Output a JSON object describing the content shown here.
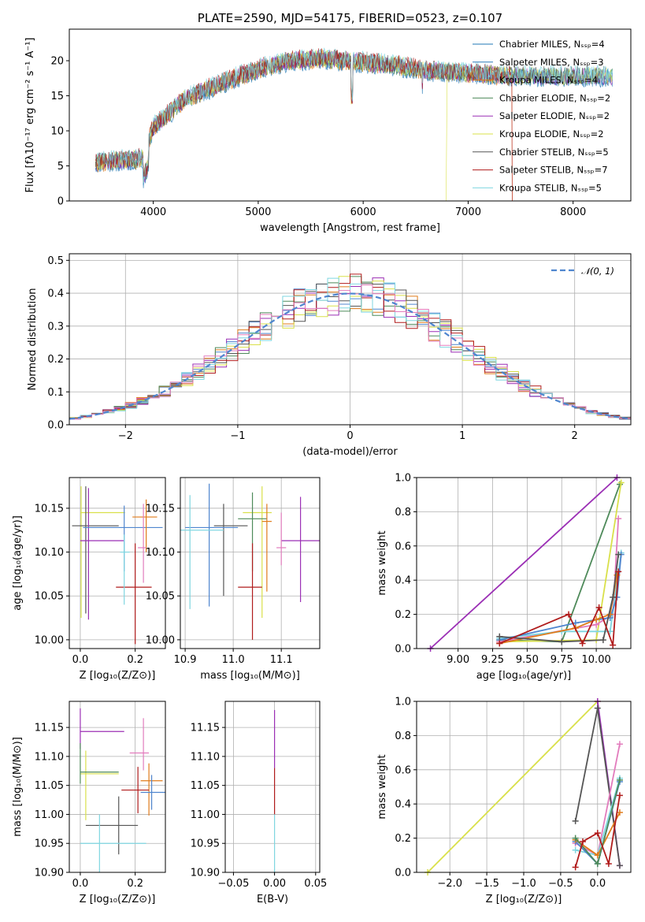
{
  "chart_data": [
    {
      "type": "line",
      "panel": "spectrum",
      "title": "PLATE=2590, MJD=54175, FIBERID=0523, z=0.107",
      "xlabel": "wavelength [Angstrom, rest frame]",
      "ylabel": "Flux [fλ10⁻¹⁷ erg cm⁻² s⁻¹ A⁻¹]",
      "xlim": [
        3200,
        8550
      ],
      "ylim": [
        0,
        24.5
      ],
      "xticks": [
        4000,
        5000,
        6000,
        7000,
        8000
      ],
      "yticks": [
        0,
        5,
        10,
        15,
        20
      ],
      "grid": false,
      "legend_position": "top-right",
      "series": [
        {
          "name": "Chabrier MILES, Nₛₛₚ=4",
          "color": "#1f77b4"
        },
        {
          "name": "Salpeter MILES, Nₛₛₚ=3",
          "color": "#2b7bba"
        },
        {
          "name": "Kroupa MILES, Nₛₛₚ=4",
          "color": "#e07b1a"
        },
        {
          "name": "Chabrier ELODIE, Nₛₛₚ=2",
          "color": "#4e8a5a"
        },
        {
          "name": "Salpeter ELODIE, Nₛₛₚ=2",
          "color": "#9b2fb5"
        },
        {
          "name": "Kroupa ELODIE, Nₛₛₚ=2",
          "color": "#d9e04a"
        },
        {
          "name": "Chabrier STELIB, Nₛₛₚ=5",
          "color": "#555555"
        },
        {
          "name": "Salpeter STELIB, Nₛₛₚ=7",
          "color": "#b01c1c"
        },
        {
          "name": "Kroupa STELIB, Nₛₛₚ=5",
          "color": "#7fd6e0"
        }
      ],
      "continuum_shape": {
        "wavelength": [
          3450,
          3700,
          3900,
          4000,
          4300,
          4600,
          5000,
          5300,
          5600,
          6000,
          6300,
          6600,
          6900,
          7200,
          7400
        ],
        "flux": [
          5.5,
          5.8,
          6.0,
          10.5,
          14.5,
          16.5,
          18.8,
          20.0,
          20.3,
          19.8,
          19.3,
          18.6,
          18.3,
          18.1,
          17.8
        ]
      }
    },
    {
      "type": "histogram",
      "panel": "residuals",
      "xlabel": "(data-model)/error",
      "ylabel": "Normed distribution",
      "xlim": [
        -2.5,
        2.5
      ],
      "ylim": [
        0,
        0.52
      ],
      "xticks": [
        -2,
        -1,
        0,
        1,
        2
      ],
      "yticks": [
        0.0,
        0.1,
        0.2,
        0.3,
        0.4,
        0.5
      ],
      "grid": true,
      "legend_position": "top-right",
      "reference_curve": {
        "name": "𝒩(0, 1)",
        "color": "#4f86cf",
        "style": "dashed"
      },
      "bin_width": 0.1
    },
    {
      "type": "scatter",
      "panel": "Z-age",
      "xlabel": "Z [log₁₀(Z/Z⊙)]",
      "ylabel": "age  [log₁₀(age/yr)]",
      "xlim": [
        -0.04,
        0.31
      ],
      "ylim": [
        9.99,
        10.185
      ],
      "xticks": [
        0.0,
        0.2
      ],
      "yticks": [
        10.0,
        10.05,
        10.1,
        10.15
      ],
      "grid": true,
      "points": [
        {
          "x": 0.003,
          "y": 10.145,
          "xerr": [
            0.003,
            0.16
          ],
          "yerr": [
            0.12,
            0.03
          ],
          "color": "#d9e04a"
        },
        {
          "x": 0.02,
          "y": 10.13,
          "xerr": [
            0.05,
            0.12
          ],
          "yerr": [
            0.1,
            0.045
          ],
          "color": "#555555"
        },
        {
          "x": 0.03,
          "y": 10.113,
          "xerr": [
            0.03,
            0.13
          ],
          "yerr": [
            0.09,
            0.06
          ],
          "color": "#9b2fb5"
        },
        {
          "x": 0.16,
          "y": 10.128,
          "xerr": [
            0.15,
            0.14
          ],
          "yerr": [
            0.05,
            0.025
          ],
          "color": "#4f86cf"
        },
        {
          "x": 0.24,
          "y": 10.14,
          "xerr": [
            0.05,
            0.04
          ],
          "yerr": [
            0.04,
            0.02
          ],
          "color": "#e07b1a"
        },
        {
          "x": 0.23,
          "y": 10.105,
          "xerr": [
            0.02,
            0.01
          ],
          "yerr": [
            0.04,
            0.05
          ],
          "color": "#e27cbd"
        },
        {
          "x": 0.2,
          "y": 10.06,
          "xerr": [
            0.07,
            0.06
          ],
          "yerr": [
            0.065,
            0.05
          ],
          "color": "#b01c1c"
        },
        {
          "x": 0.16,
          "y": 10.1,
          "xerr": [
            0.015,
            0.02
          ],
          "yerr": [
            0.06,
            0.02
          ],
          "color": "#7fd6e0"
        }
      ]
    },
    {
      "type": "scatter",
      "panel": "mass-age",
      "xlabel": "mass [log₁₀(M/M⊙)]",
      "xlim": [
        10.89,
        11.18
      ],
      "ylim": [
        9.99,
        10.185
      ],
      "xticks": [
        10.9,
        11.0,
        11.1
      ],
      "yticks": [
        10.0,
        10.05,
        10.1,
        10.15
      ],
      "grid": true,
      "points": [
        {
          "x": 11.06,
          "y": 10.145,
          "xerr": [
            0.04,
            0.02
          ],
          "yerr": [
            0.12,
            0.03
          ],
          "color": "#d9e04a"
        },
        {
          "x": 10.98,
          "y": 10.13,
          "xerr": [
            0.02,
            0.05
          ],
          "yerr": [
            0.08,
            0.025
          ],
          "color": "#555555"
        },
        {
          "x": 11.14,
          "y": 10.113,
          "xerr": [
            0.04,
            0.04
          ],
          "yerr": [
            0.07,
            0.05
          ],
          "color": "#9b2fb5"
        },
        {
          "x": 11.04,
          "y": 10.138,
          "xerr": [
            0.03,
            0.03
          ],
          "yerr": [
            0.06,
            0.03
          ],
          "color": "#4e8a5a"
        },
        {
          "x": 10.95,
          "y": 10.128,
          "xerr": [
            0.05,
            0.06
          ],
          "yerr": [
            0.09,
            0.05
          ],
          "color": "#4f86cf"
        },
        {
          "x": 11.04,
          "y": 10.06,
          "xerr": [
            0.03,
            0.02
          ],
          "yerr": [
            0.06,
            0.05
          ],
          "color": "#b01c1c"
        },
        {
          "x": 11.1,
          "y": 10.105,
          "xerr": [
            0.01,
            0.01
          ],
          "yerr": [
            0.02,
            0.04
          ],
          "color": "#e27cbd"
        },
        {
          "x": 11.07,
          "y": 10.135,
          "xerr": [
            0.01,
            0.01
          ],
          "yerr": [
            0.08,
            0.02
          ],
          "color": "#e07b1a"
        },
        {
          "x": 10.91,
          "y": 10.125,
          "xerr": [
            0.02,
            0.07
          ],
          "yerr": [
            0.09,
            0.04
          ],
          "color": "#7fd6e0"
        }
      ]
    },
    {
      "type": "line",
      "panel": "age-weight",
      "xlabel": "age  [log₁₀(age/yr)]",
      "ylabel": "mass weight",
      "xlim": [
        8.7,
        10.25
      ],
      "ylim": [
        0,
        1.0
      ],
      "xticks": [
        9.0,
        9.25,
        9.5,
        9.75,
        10.0
      ],
      "yticks": [
        0.0,
        0.2,
        0.4,
        0.6,
        0.8,
        1.0
      ],
      "grid": true,
      "series": [
        {
          "color": "#9b2fb5",
          "x": [
            8.8,
            10.15
          ],
          "y": [
            0.0,
            1.0
          ]
        },
        {
          "color": "#4e8a5a",
          "x": [
            9.3,
            9.75,
            10.17
          ],
          "y": [
            0.05,
            0.04,
            0.96
          ]
        },
        {
          "color": "#d9e04a",
          "x": [
            9.3,
            10.0,
            10.18
          ],
          "y": [
            0.04,
            0.05,
            0.97
          ]
        },
        {
          "color": "#e27cbd",
          "x": [
            9.3,
            10.0,
            10.12,
            10.16
          ],
          "y": [
            0.04,
            0.14,
            0.2,
            0.76
          ]
        },
        {
          "color": "#7fd6e0",
          "x": [
            9.3,
            9.75,
            10.1,
            10.18
          ],
          "y": [
            0.06,
            0.1,
            0.1,
            0.56
          ]
        },
        {
          "color": "#4f86cf",
          "x": [
            9.3,
            9.85,
            10.1,
            10.15,
            10.18
          ],
          "y": [
            0.05,
            0.15,
            0.18,
            0.3,
            0.55
          ]
        },
        {
          "color": "#e07b1a",
          "x": [
            9.3,
            9.85,
            10.0,
            10.1,
            10.15
          ],
          "y": [
            0.03,
            0.12,
            0.17,
            0.2,
            0.43
          ]
        },
        {
          "color": "#555555",
          "x": [
            9.3,
            9.75,
            10.05,
            10.12,
            10.16
          ],
          "y": [
            0.07,
            0.04,
            0.05,
            0.3,
            0.55
          ]
        },
        {
          "color": "#b01c1c",
          "x": [
            9.3,
            9.8,
            9.9,
            10.02,
            10.12,
            10.16
          ],
          "y": [
            0.03,
            0.2,
            0.03,
            0.24,
            0.02,
            0.45
          ]
        }
      ]
    },
    {
      "type": "scatter",
      "panel": "Z-mass",
      "xlabel": "Z [log₁₀(Z/Z⊙)]",
      "ylabel": "mass [log₁₀(M/M⊙)]",
      "xlim": [
        -0.04,
        0.31
      ],
      "ylim": [
        10.9,
        11.195
      ],
      "xticks": [
        0.0,
        0.2
      ],
      "yticks": [
        10.9,
        10.95,
        11.0,
        11.05,
        11.1,
        11.15
      ],
      "grid": true,
      "points": [
        {
          "x": 0.0,
          "y": 11.143,
          "xerr": [
            0.0,
            0.16
          ],
          "yerr": [
            0.03,
            0.04
          ],
          "color": "#9b2fb5"
        },
        {
          "x": 0.02,
          "y": 11.07,
          "xerr": [
            0.02,
            0.12
          ],
          "yerr": [
            0.08,
            0.04
          ],
          "color": "#d9e04a"
        },
        {
          "x": 0.0,
          "y": 11.073,
          "xerr": [
            0.0,
            0.14
          ],
          "yerr": [
            0.02,
            0.05
          ],
          "color": "#4e8a5a"
        },
        {
          "x": 0.14,
          "y": 10.981,
          "xerr": [
            0.12,
            0.07
          ],
          "yerr": [
            0.05,
            0.05
          ],
          "color": "#555555"
        },
        {
          "x": 0.07,
          "y": 10.95,
          "xerr": [
            0.07,
            0.17
          ],
          "yerr": [
            0.05,
            0.05
          ],
          "color": "#7fd6e0"
        },
        {
          "x": 0.23,
          "y": 11.106,
          "xerr": [
            0.05,
            0.02
          ],
          "yerr": [
            0.03,
            0.06
          ],
          "color": "#e27cbd"
        },
        {
          "x": 0.25,
          "y": 11.058,
          "xerr": [
            0.03,
            0.05
          ],
          "yerr": [
            0.06,
            0.03
          ],
          "color": "#e07b1a"
        },
        {
          "x": 0.21,
          "y": 11.042,
          "xerr": [
            0.06,
            0.04
          ],
          "yerr": [
            0.04,
            0.04
          ],
          "color": "#b01c1c"
        },
        {
          "x": 0.26,
          "y": 11.038,
          "xerr": [
            0.04,
            0.05
          ],
          "yerr": [
            0.03,
            0.03
          ],
          "color": "#4f86cf"
        }
      ]
    },
    {
      "type": "scatter",
      "panel": "EBV-mass",
      "xlabel": "E(B-V)",
      "xlim": [
        -0.06,
        0.055
      ],
      "ylim": [
        10.9,
        11.195
      ],
      "xticks": [
        -0.05,
        0.0,
        0.05
      ],
      "yticks": [
        10.9,
        10.95,
        11.0,
        11.05,
        11.1,
        11.15
      ],
      "grid": true,
      "points": [
        {
          "x": 0.0,
          "y": 11.14,
          "yerr": [
            0.06,
            0.04
          ],
          "color": "#9b2fb5"
        },
        {
          "x": 0.0,
          "y": 11.05,
          "yerr": [
            0.05,
            0.03
          ],
          "color": "#b01c1c"
        },
        {
          "x": 0.0,
          "y": 10.95,
          "yerr": [
            0.05,
            0.05
          ],
          "color": "#7fd6e0"
        }
      ]
    },
    {
      "type": "line",
      "panel": "Z-weight",
      "xlabel": "Z [log₁₀(Z/Z⊙)]",
      "ylabel": "mass weight",
      "xlim": [
        -2.45,
        0.45
      ],
      "ylim": [
        0,
        1.0
      ],
      "xticks": [
        -2.0,
        -1.5,
        -1.0,
        -0.5,
        0.0
      ],
      "yticks": [
        0.0,
        0.2,
        0.4,
        0.6,
        0.8,
        1.0
      ],
      "grid": true,
      "series": [
        {
          "color": "#d9e04a",
          "x": [
            -2.3,
            0.0
          ],
          "y": [
            0.0,
            1.0
          ]
        },
        {
          "color": "#9b2fb5",
          "x": [
            0.0,
            0.3
          ],
          "y": [
            1.0,
            0.04
          ]
        },
        {
          "color": "#555555",
          "x": [
            -0.3,
            0.0,
            0.3
          ],
          "y": [
            0.3,
            0.96,
            0.04
          ]
        },
        {
          "color": "#e27cbd",
          "x": [
            -0.3,
            0.0,
            0.3
          ],
          "y": [
            0.17,
            0.1,
            0.75
          ]
        },
        {
          "color": "#7fd6e0",
          "x": [
            -0.3,
            0.0,
            0.3
          ],
          "y": [
            0.13,
            0.1,
            0.55
          ]
        },
        {
          "color": "#4f86cf",
          "x": [
            -0.3,
            0.0,
            0.3
          ],
          "y": [
            0.18,
            0.05,
            0.53
          ]
        },
        {
          "color": "#e07b1a",
          "x": [
            -0.3,
            0.0,
            0.3
          ],
          "y": [
            0.19,
            0.1,
            0.35
          ]
        },
        {
          "color": "#4e8a5a",
          "x": [
            -0.3,
            0.0,
            0.3
          ],
          "y": [
            0.2,
            0.05,
            0.54
          ]
        },
        {
          "color": "#b01c1c",
          "x": [
            -0.3,
            -0.2,
            0.0,
            0.15,
            0.3
          ],
          "y": [
            0.03,
            0.18,
            0.23,
            0.05,
            0.45
          ]
        }
      ]
    }
  ]
}
